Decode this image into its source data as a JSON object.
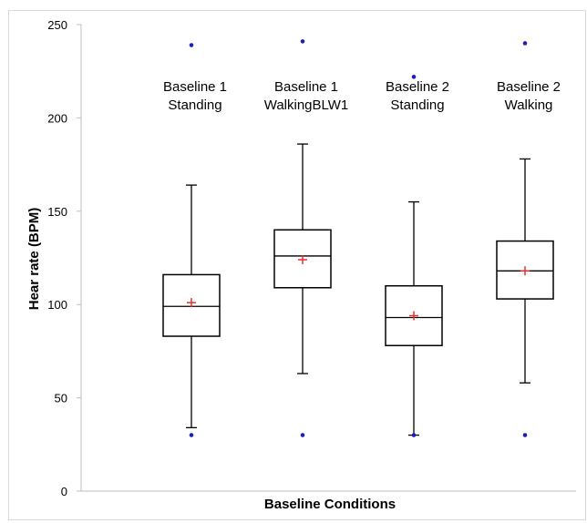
{
  "chart_data": {
    "type": "box",
    "xlabel": "Baseline Conditions",
    "ylabel": "Hear rate (BPM)",
    "ylim": [
      0,
      250
    ],
    "yticks": [
      0,
      50,
      100,
      150,
      200,
      250
    ],
    "grid": false,
    "colors": {
      "box": "#000000",
      "mean_marker": "#e8302a",
      "outlier": "#1f1fb8",
      "axis": "#bfbfbf"
    },
    "groups": [
      {
        "label_line1": "Baseline 1",
        "label_line2": "Standing",
        "min": 34,
        "q1": 83,
        "median": 99,
        "q3": 116,
        "max": 164,
        "mean": 101,
        "outliers": [
          239,
          30
        ]
      },
      {
        "label_line1": "Baseline 1",
        "label_line2": "WalkingBLW1",
        "min": 63,
        "q1": 109,
        "median": 126,
        "q3": 140,
        "max": 186,
        "mean": 124,
        "outliers": [
          241,
          30
        ]
      },
      {
        "label_line1": "Baseline 2",
        "label_line2": "Standing",
        "min": 30,
        "q1": 78,
        "median": 93,
        "q3": 110,
        "max": 155,
        "mean": 94,
        "outliers": [
          222,
          30
        ]
      },
      {
        "label_line1": "Baseline 2",
        "label_line2": "Walking",
        "min": 58,
        "q1": 103,
        "median": 118,
        "q3": 134,
        "max": 178,
        "mean": 118,
        "outliers": [
          240,
          30
        ]
      }
    ]
  }
}
